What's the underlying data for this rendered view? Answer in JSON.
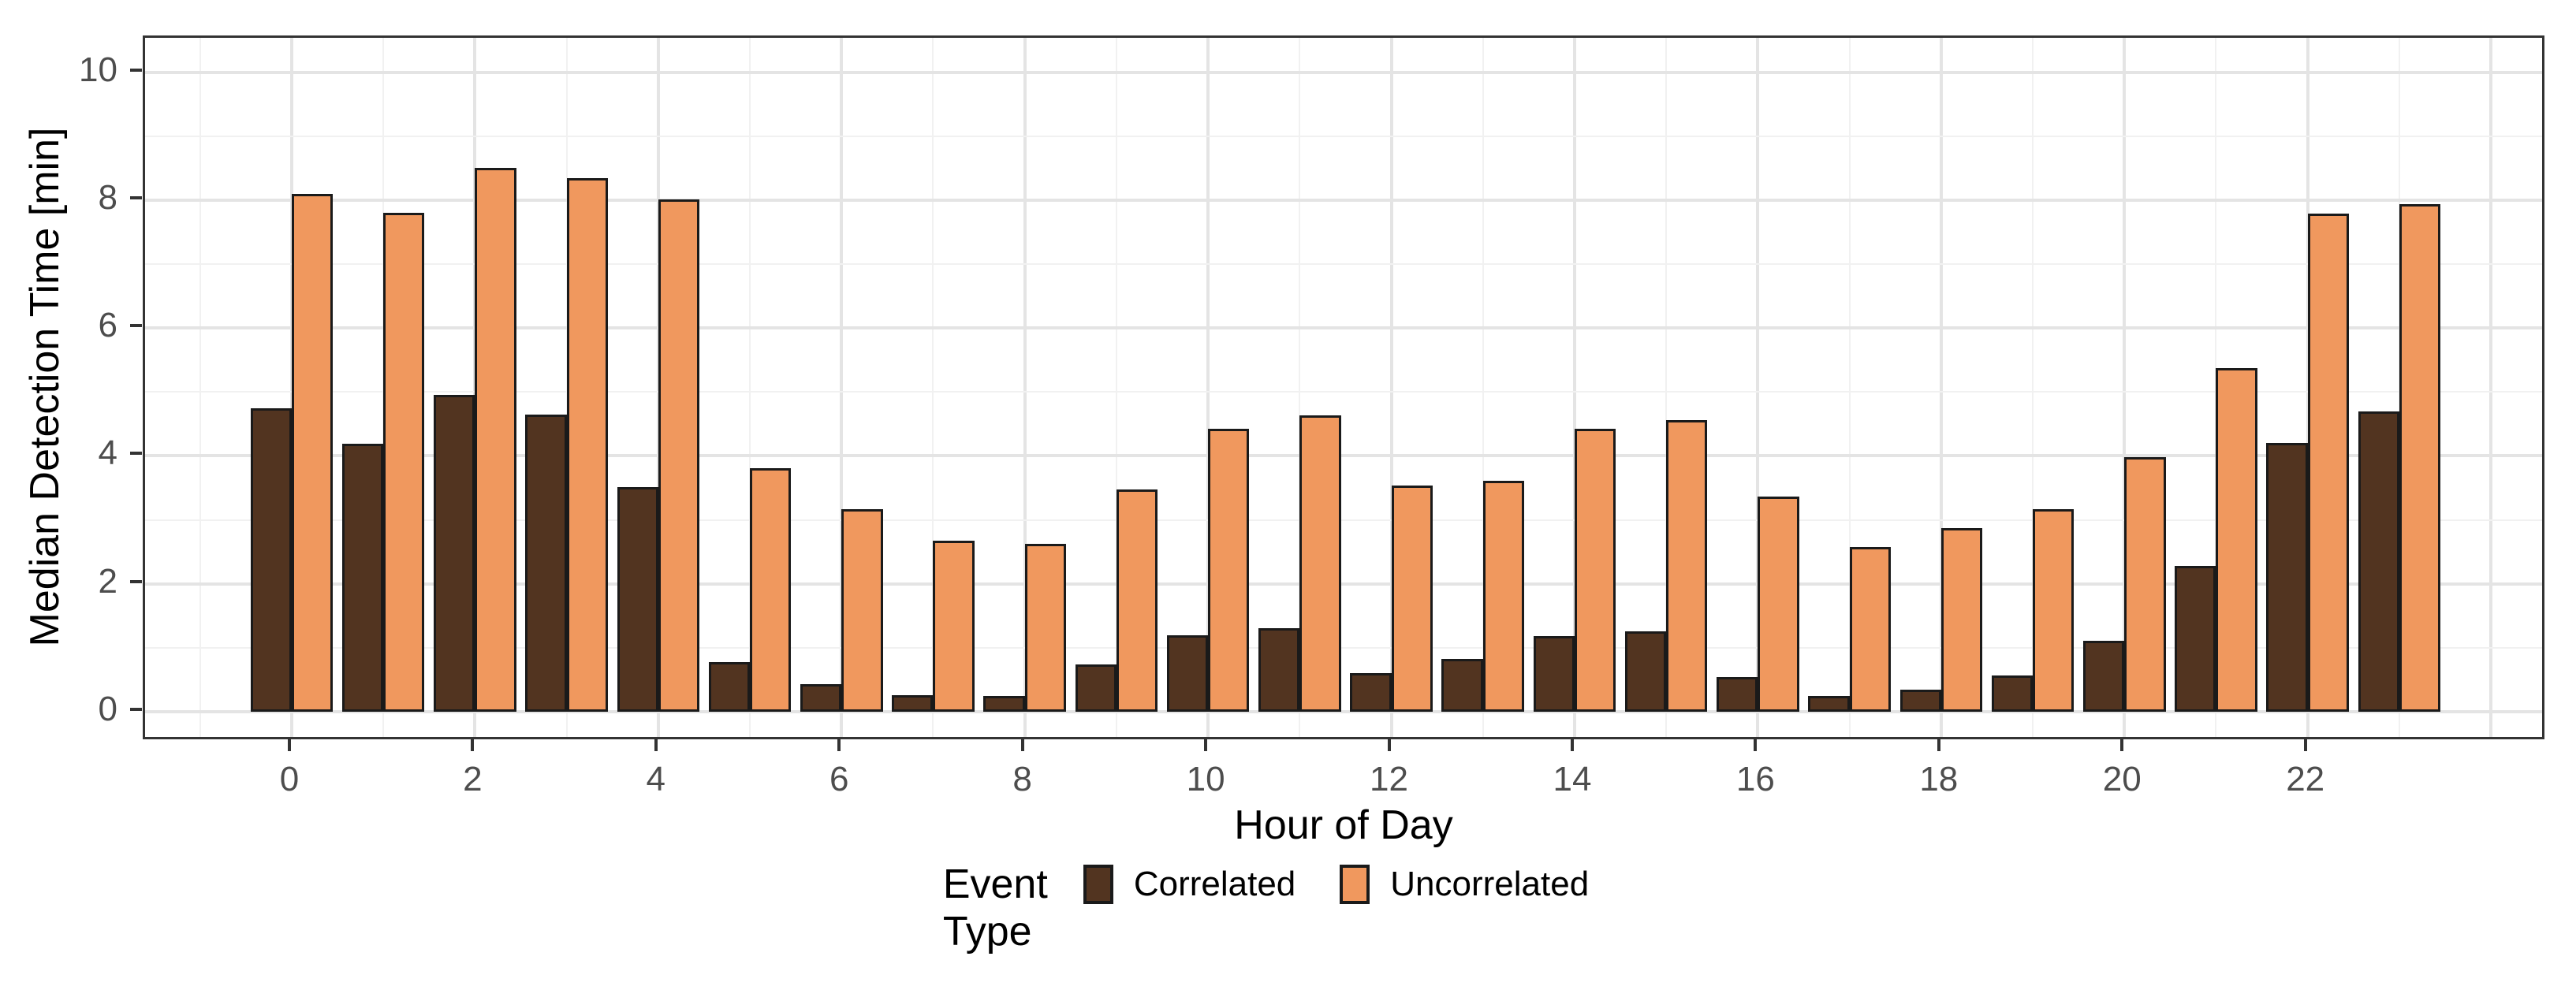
{
  "chart_data": {
    "type": "bar",
    "title": "",
    "xlabel": "Hour of Day",
    "ylabel": "Median Detection Time [min]",
    "categories": [
      0,
      1,
      2,
      3,
      4,
      5,
      6,
      7,
      8,
      9,
      10,
      11,
      12,
      13,
      14,
      15,
      16,
      17,
      18,
      19,
      20,
      21,
      22,
      23
    ],
    "series": [
      {
        "name": "Correlated",
        "color": "#523420",
        "values": [
          4.75,
          4.19,
          4.96,
          4.65,
          3.51,
          0.77,
          0.43,
          0.26,
          0.25,
          0.74,
          1.19,
          1.31,
          0.6,
          0.83,
          1.18,
          1.26,
          0.54,
          0.24,
          0.34,
          0.57,
          1.11,
          2.28,
          4.2,
          4.7
        ]
      },
      {
        "name": "Uncorrelated",
        "color": "#F0985E",
        "values": [
          8.1,
          7.8,
          8.5,
          8.35,
          8.01,
          3.81,
          3.17,
          2.67,
          2.63,
          3.48,
          4.42,
          4.63,
          3.54,
          3.61,
          4.42,
          4.56,
          3.37,
          2.58,
          2.87,
          3.17,
          3.98,
          5.38,
          7.79,
          7.94
        ]
      }
    ],
    "x_ticks": [
      0,
      2,
      4,
      6,
      8,
      10,
      12,
      14,
      16,
      18,
      20,
      22
    ],
    "y_ticks": [
      0,
      2,
      4,
      6,
      8,
      10
    ],
    "xlim": [
      -1.6,
      24.61
    ],
    "ylim": [
      -0.47,
      10.54
    ],
    "grid": "major-and-minor",
    "legend_position": "bottom-center",
    "colors": {
      "bar_border": "#1a1a1a",
      "panel_border": "#333333",
      "grid_major": "#e4e4e4",
      "grid_minor": "#f1f1f1",
      "tick_mark": "#333333",
      "tick_text": "#4d4d4d",
      "title_text": "#000000"
    }
  },
  "legend": {
    "title": "Event Type"
  }
}
